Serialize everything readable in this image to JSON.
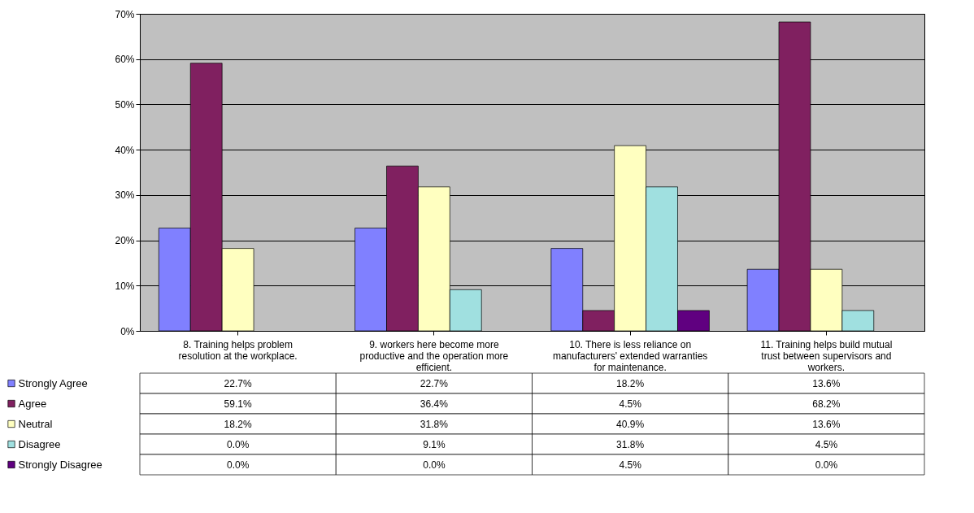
{
  "chart_data": {
    "type": "bar",
    "categories": [
      "8. Training helps problem resolution at the workplace.",
      "9. workers here become more productive and the operation more efficient.",
      "10. There is less reliance on manufacturers' extended warranties for maintenance.",
      "11. Training helps build mutual trust between supervisors and workers."
    ],
    "series": [
      {
        "name": "Strongly Agree",
        "color": "#8080ff",
        "values": [
          22.7,
          22.7,
          18.2,
          13.6
        ],
        "value_labels": [
          "22.7%",
          "22.7%",
          "18.2%",
          "13.6%"
        ]
      },
      {
        "name": "Agree",
        "color": "#802060",
        "values": [
          59.1,
          36.4,
          4.5,
          68.2
        ],
        "value_labels": [
          "59.1%",
          "36.4%",
          "4.5%",
          "68.2%"
        ]
      },
      {
        "name": "Neutral",
        "color": "#ffffc0",
        "values": [
          18.2,
          31.8,
          40.9,
          13.6
        ],
        "value_labels": [
          "18.2%",
          "31.8%",
          "40.9%",
          "13.6%"
        ]
      },
      {
        "name": "Disagree",
        "color": "#a0e0e0",
        "values": [
          0.0,
          9.1,
          31.8,
          4.5
        ],
        "value_labels": [
          "0.0%",
          "9.1%",
          "31.8%",
          "4.5%"
        ]
      },
      {
        "name": "Strongly Disagree",
        "color": "#600080",
        "values": [
          0.0,
          0.0,
          4.5,
          0.0
        ],
        "value_labels": [
          "0.0%",
          "0.0%",
          "4.5%",
          "0.0%"
        ]
      }
    ],
    "ylim": [
      0,
      70
    ],
    "yticks": [
      {
        "value": 0,
        "label": "0%"
      },
      {
        "value": 10,
        "label": "10%"
      },
      {
        "value": 20,
        "label": "20%"
      },
      {
        "value": 30,
        "label": "30%"
      },
      {
        "value": 40,
        "label": "40%"
      },
      {
        "value": 50,
        "label": "50%"
      },
      {
        "value": 60,
        "label": "60%"
      },
      {
        "value": 70,
        "label": "70%"
      }
    ],
    "grid": "y",
    "legend": "bottom left"
  }
}
